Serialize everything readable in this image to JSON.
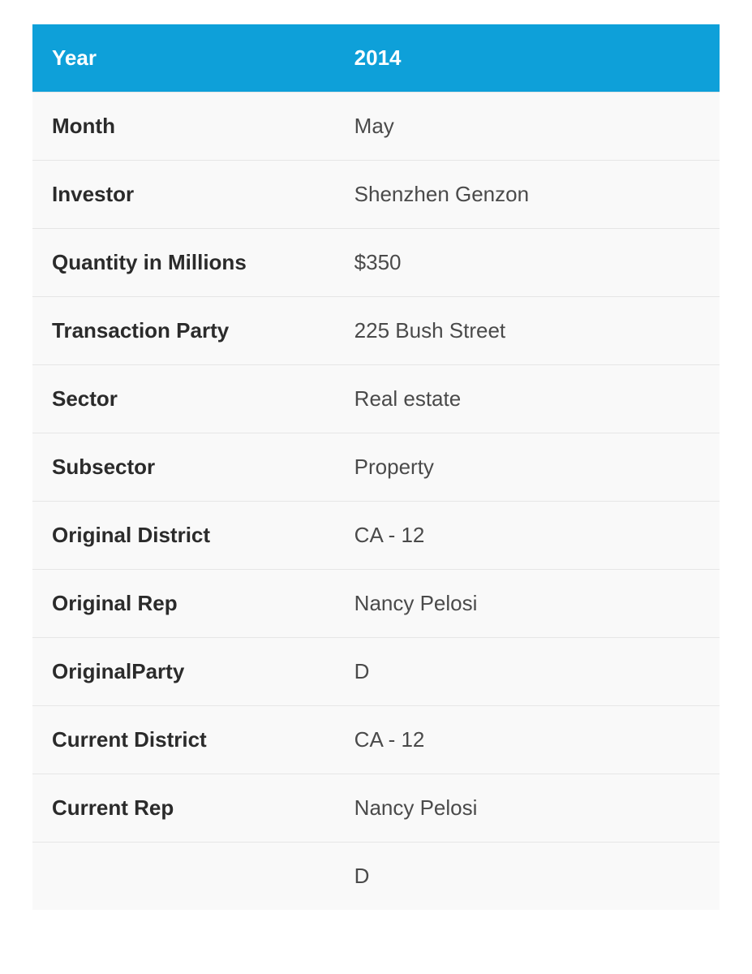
{
  "table": {
    "type": "table",
    "background_color": "#f9f9f9",
    "header_bg_color": "#0ea0d9",
    "header_text_color": "#ffffff",
    "row_border_color": "#e6e6e6",
    "label_font_weight": 700,
    "value_font_weight": 400,
    "font_size_pt": 20,
    "label_color": "#2b2b2b",
    "value_color": "#4a4a4a",
    "label_col_width_pct": 44,
    "header": {
      "label": "Year",
      "value": "2014"
    },
    "rows": [
      {
        "label": "Month",
        "value": "May"
      },
      {
        "label": "Investor",
        "value": "Shenzhen Genzon"
      },
      {
        "label": "Quantity in Millions",
        "value": "$350"
      },
      {
        "label": "Transaction Party",
        "value": "225 Bush Street"
      },
      {
        "label": "Sector",
        "value": "Real estate"
      },
      {
        "label": "Subsector",
        "value": "Property"
      },
      {
        "label": "Original District",
        "value": "CA - 12"
      },
      {
        "label": "Original Rep",
        "value": "Nancy Pelosi"
      },
      {
        "label": "OriginalParty",
        "value": "D"
      },
      {
        "label": "Current District",
        "value": "CA - 12"
      },
      {
        "label": "Current Rep",
        "value": "Nancy Pelosi"
      },
      {
        "label": "",
        "value": "D"
      }
    ]
  }
}
